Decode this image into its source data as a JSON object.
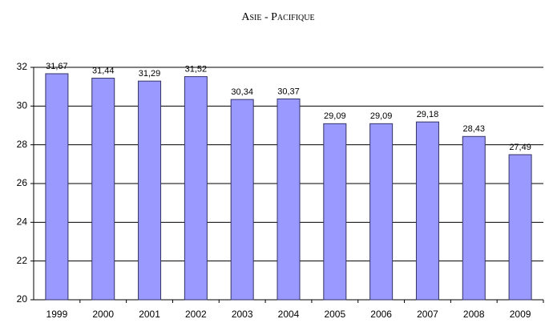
{
  "chart_data": {
    "type": "bar",
    "title": "Asie - Pacifique",
    "categories": [
      "1999",
      "2000",
      "2001",
      "2002",
      "2003",
      "2004",
      "2005",
      "2006",
      "2007",
      "2008",
      "2009"
    ],
    "values": [
      31.67,
      31.44,
      31.29,
      31.52,
      30.34,
      30.37,
      29.09,
      29.09,
      29.18,
      28.43,
      27.49
    ],
    "value_labels": [
      "31,67",
      "31,44",
      "31,29",
      "31,52",
      "30,34",
      "30,37",
      "29,09",
      "29,09",
      "29,18",
      "28,43",
      "27,49"
    ],
    "color": "#9999ff",
    "ylim": [
      20,
      32
    ],
    "yticks": [
      20,
      22,
      24,
      26,
      28,
      30,
      32
    ],
    "grid": true
  }
}
